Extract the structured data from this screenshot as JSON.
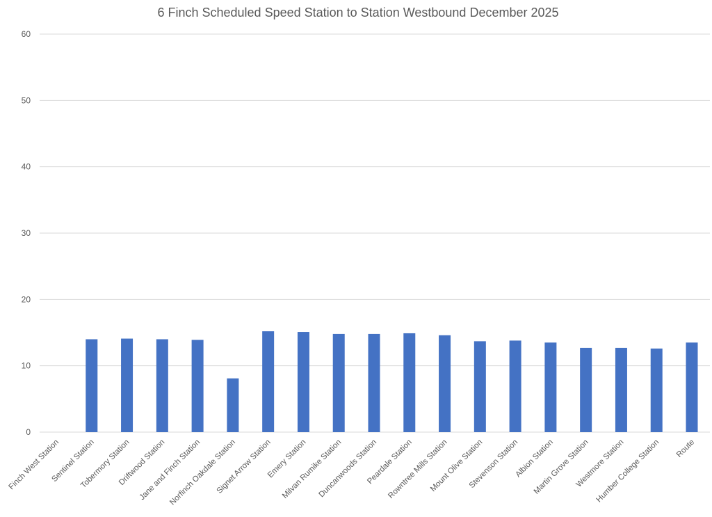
{
  "chart_data": {
    "type": "bar",
    "title": "6 Finch Scheduled Speed Station to Station Westbound December 2025",
    "xlabel": "",
    "ylabel": "",
    "ylim": [
      0,
      60
    ],
    "yticks": [
      0,
      10,
      20,
      30,
      40,
      50,
      60
    ],
    "grid": true,
    "legend": "none",
    "bar_color": "#4472C4",
    "categories": [
      "Finch West Station",
      "Sentinel Station",
      "Tobermory Station",
      "Driftwood Station",
      "Jane and Finch Station",
      "Norfinch Oakdale Station",
      "Signet Arrow Station",
      "Emery Station",
      "Milvan Rumike Station",
      "Duncanwoods Station",
      "Peardale Station",
      "Rowntree Mills Station",
      "Mount Olive Station",
      "Stevenson Station",
      "Albion Station",
      "Martin Grove Station",
      "Westmore Station",
      "Humber College Station",
      "Route"
    ],
    "values": [
      null,
      14.0,
      14.1,
      14.0,
      13.9,
      8.1,
      15.2,
      15.1,
      14.8,
      14.8,
      14.9,
      14.6,
      13.7,
      13.8,
      13.5,
      12.7,
      12.7,
      12.6,
      13.5
    ]
  }
}
